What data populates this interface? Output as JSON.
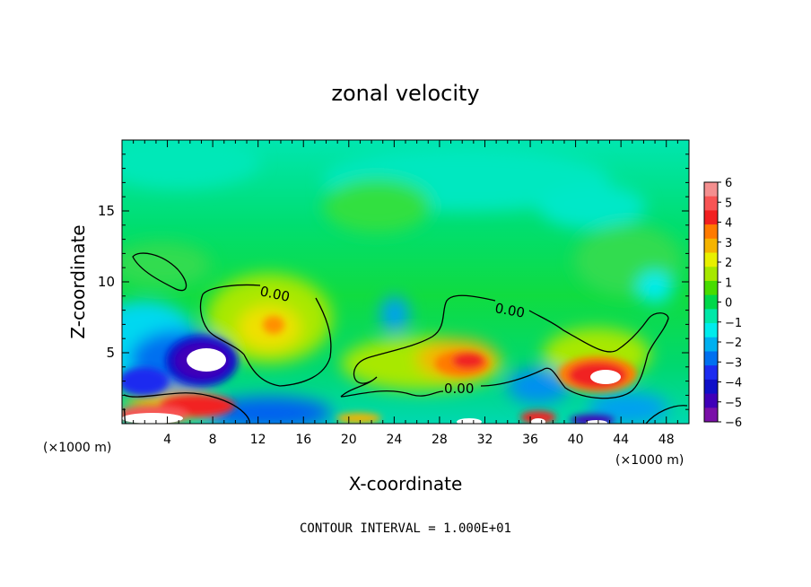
{
  "chart_data": {
    "type": "heatmap",
    "title": "zonal velocity",
    "xlabel": "X-coordinate",
    "ylabel": "Z-coordinate",
    "x_unit_left": "(×1000 m)",
    "x_unit_right": "(×1000 m)",
    "footer": "CONTOUR INTERVAL = 1.000E+01",
    "xlim": [
      0,
      50
    ],
    "ylim": [
      0,
      20
    ],
    "x_ticks": [
      "4",
      "8",
      "12",
      "16",
      "20",
      "24",
      "28",
      "32",
      "36",
      "40",
      "44",
      "48"
    ],
    "y_ticks": [
      "5",
      "10",
      "15"
    ],
    "contour_labels": [
      "0.00",
      "0.00",
      "0.00"
    ],
    "colorbar": {
      "min": -6,
      "max": 6,
      "tick_labels": [
        "6",
        "5",
        "4",
        "3",
        "2",
        "1",
        "0",
        "−1",
        "−2",
        "−3",
        "−4",
        "−5",
        "−6"
      ],
      "levels": [
        {
          "color": "#f48f8f"
        },
        {
          "color": "#f85454"
        },
        {
          "color": "#f22020"
        },
        {
          "color": "#ff7a00"
        },
        {
          "color": "#f5b400"
        },
        {
          "color": "#e8f000"
        },
        {
          "color": "#a6e800"
        },
        {
          "color": "#48dc00"
        },
        {
          "color": "#00d84a"
        },
        {
          "color": "#00e8a8"
        },
        {
          "color": "#00ecec"
        },
        {
          "color": "#00b0f0"
        },
        {
          "color": "#0070f0"
        },
        {
          "color": "#1c2cf0"
        },
        {
          "color": "#1010c8"
        },
        {
          "color": "#4000b8"
        },
        {
          "color": "#7a10a8"
        }
      ]
    },
    "features": [
      {
        "kind": "positive core",
        "x": 13.5,
        "z": 6.8,
        "value": 2.5
      },
      {
        "kind": "positive core",
        "x": 30,
        "z": 4.5,
        "value": 4
      },
      {
        "kind": "positive core",
        "x": 41.5,
        "z": 3.2,
        "value": 6
      },
      {
        "kind": "positive core",
        "x": 8,
        "z": 1.2,
        "value": 4
      },
      {
        "kind": "negative core",
        "x": 7.5,
        "z": 4.5,
        "value": -6
      },
      {
        "kind": "negative core",
        "x": 3,
        "z": 2.5,
        "value": -4
      },
      {
        "kind": "negative core",
        "x": 24.2,
        "z": 7.5,
        "value": -3
      },
      {
        "kind": "negative core",
        "x": 35,
        "z": 3,
        "value": -3
      },
      {
        "kind": "negative core",
        "x": 47,
        "z": 10,
        "value": -2
      }
    ]
  }
}
